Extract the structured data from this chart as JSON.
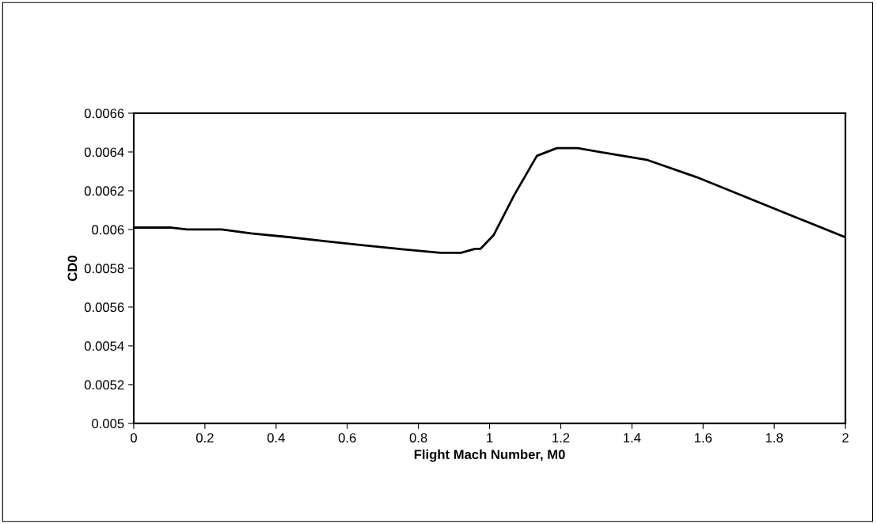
{
  "chart_data": {
    "type": "line",
    "xlabel": "Flight Mach Number, M0",
    "ylabel": "CD0",
    "x": [
      0,
      0.106,
      0.15,
      0.247,
      0.33,
      0.44,
      0.536,
      0.64,
      0.744,
      0.862,
      0.92,
      0.959,
      0.974,
      1.011,
      1.07,
      1.133,
      1.189,
      1.248,
      1.341,
      1.441,
      1.582,
      1.73,
      1.878,
      2.0
    ],
    "series": [
      {
        "color": "#000000",
        "values": [
          0.00601,
          0.00601,
          0.006,
          0.006,
          0.00598,
          0.00596,
          0.00594,
          0.00592,
          0.0059,
          0.00588,
          0.00588,
          0.0059,
          0.0059,
          0.00597,
          0.00618,
          0.00638,
          0.00642,
          0.00642,
          0.00639,
          0.00636,
          0.00627,
          0.00616,
          0.00605,
          0.00596
        ]
      }
    ],
    "xlim": [
      0,
      2
    ],
    "xticks": [
      0,
      {
        "value": 0.2,
        "label": "0.2"
      },
      {
        "value": 0.4,
        "label": "0.4"
      },
      {
        "value": 0.6,
        "label": "0.6"
      },
      {
        "value": 0.8,
        "label": "0.8"
      },
      1,
      {
        "value": 1.2,
        "label": "1.2"
      },
      {
        "value": 1.4,
        "label": "1.4"
      },
      {
        "value": 1.6,
        "label": "1.6"
      },
      {
        "value": 1.8,
        "label": "1.8"
      },
      2
    ],
    "ylim": [
      0.005,
      0.0066
    ],
    "yticks": [
      0.005,
      0.0052,
      0.0054,
      0.0056,
      0.0058,
      0.006,
      0.0062,
      0.0064,
      0.0066
    ],
    "grid": false,
    "marker": "none",
    "line_style": "solid"
  }
}
